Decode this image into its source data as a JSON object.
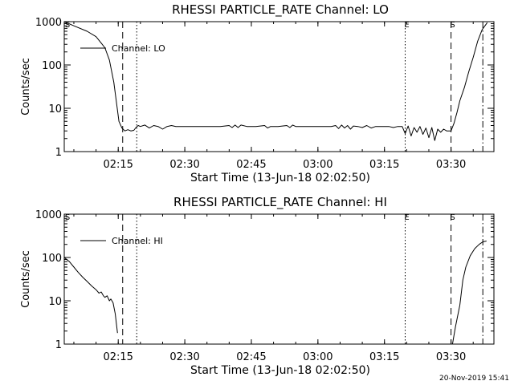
{
  "footer": {
    "timestamp": "20-Nov-2019 15:41"
  },
  "chart_data": [
    {
      "type": "line",
      "title": "RHESSI PARTICLE_RATE Channel: LO",
      "xlabel": "Start Time (13-Jun-18 02:02:50)",
      "ylabel": "Counts/sec",
      "y_scale": "log",
      "ylim": [
        1,
        1000
      ],
      "xlim": [
        "02:02:50",
        "03:39:40"
      ],
      "x_ticks": [
        "02:15",
        "02:30",
        "02:45",
        "03:00",
        "03:15",
        "03:30"
      ],
      "y_ticks": [
        "1",
        "10",
        "100",
        "1000"
      ],
      "legend": {
        "position": "top-left",
        "entries": [
          "Channel: LO"
        ]
      },
      "grid": false,
      "markers": [
        {
          "time": "02:16:00",
          "style": "dashed",
          "label": ""
        },
        {
          "time": "02:19:10",
          "style": "dotted",
          "label": ""
        },
        {
          "time": "03:19:40",
          "style": "dotted",
          "label": "E"
        },
        {
          "time": "03:30:00",
          "style": "dashed",
          "label": "S"
        },
        {
          "time": "03:37:10",
          "style": "dashdot",
          "label": ""
        }
      ],
      "corner_labels": [
        "S"
      ],
      "series": [
        {
          "name": "Channel: LO",
          "points": [
            [
              "02:02:50",
              1000
            ],
            [
              "02:05:00",
              800
            ],
            [
              "02:08:00",
              600
            ],
            [
              "02:10:00",
              450
            ],
            [
              "02:12:00",
              250
            ],
            [
              "02:13:00",
              130
            ],
            [
              "02:14:00",
              40
            ],
            [
              "02:14:40",
              12
            ],
            [
              "02:15:10",
              5
            ],
            [
              "02:15:50",
              3.5
            ],
            [
              "02:16:30",
              3.0
            ],
            [
              "02:17:10",
              3.2
            ],
            [
              "02:17:50",
              3.0
            ],
            [
              "02:18:30",
              3.1
            ],
            [
              "02:19:00",
              3.6
            ],
            [
              "02:19:30",
              4.0
            ],
            [
              "02:20:00",
              3.8
            ],
            [
              "02:21:00",
              4.1
            ],
            [
              "02:22:00",
              3.5
            ],
            [
              "02:23:00",
              4.0
            ],
            [
              "02:24:00",
              3.8
            ],
            [
              "02:25:00",
              3.3
            ],
            [
              "02:26:00",
              3.8
            ],
            [
              "02:27:00",
              4.0
            ],
            [
              "02:28:00",
              3.8
            ],
            [
              "02:29:00",
              3.8
            ],
            [
              "02:30:00",
              3.8
            ],
            [
              "02:32:00",
              3.8
            ],
            [
              "02:34:00",
              3.8
            ],
            [
              "02:36:00",
              3.8
            ],
            [
              "02:38:00",
              3.8
            ],
            [
              "02:40:00",
              4.0
            ],
            [
              "02:40:40",
              3.6
            ],
            [
              "02:41:20",
              4.1
            ],
            [
              "02:42:00",
              3.6
            ],
            [
              "02:42:40",
              4.1
            ],
            [
              "02:44:00",
              3.8
            ],
            [
              "02:46:00",
              3.8
            ],
            [
              "02:48:00",
              4.0
            ],
            [
              "02:48:40",
              3.5
            ],
            [
              "02:49:20",
              3.8
            ],
            [
              "02:51:00",
              3.8
            ],
            [
              "02:53:00",
              4.0
            ],
            [
              "02:53:40",
              3.6
            ],
            [
              "02:54:20",
              4.1
            ],
            [
              "02:55:00",
              3.8
            ],
            [
              "02:57:00",
              3.8
            ],
            [
              "02:59:00",
              3.8
            ],
            [
              "03:01:00",
              3.8
            ],
            [
              "03:03:00",
              3.8
            ],
            [
              "03:04:00",
              4.0
            ],
            [
              "03:04:40",
              3.4
            ],
            [
              "03:05:20",
              4.1
            ],
            [
              "03:06:00",
              3.5
            ],
            [
              "03:06:40",
              4.0
            ],
            [
              "03:07:20",
              3.3
            ],
            [
              "03:08:00",
              3.9
            ],
            [
              "03:09:00",
              3.8
            ],
            [
              "03:10:00",
              3.6
            ],
            [
              "03:11:00",
              4.0
            ],
            [
              "03:12:00",
              3.5
            ],
            [
              "03:13:00",
              3.8
            ],
            [
              "03:14:00",
              3.8
            ],
            [
              "03:15:00",
              3.8
            ],
            [
              "03:16:00",
              3.8
            ],
            [
              "03:17:00",
              3.6
            ],
            [
              "03:18:00",
              3.8
            ],
            [
              "03:19:00",
              3.8
            ],
            [
              "03:19:40",
              2.6
            ],
            [
              "03:20:20",
              3.9
            ],
            [
              "03:21:00",
              2.3
            ],
            [
              "03:21:40",
              3.6
            ],
            [
              "03:22:20",
              2.8
            ],
            [
              "03:23:00",
              3.8
            ],
            [
              "03:23:40",
              2.5
            ],
            [
              "03:24:20",
              3.5
            ],
            [
              "03:25:00",
              2.1
            ],
            [
              "03:25:40",
              3.6
            ],
            [
              "03:26:20",
              1.8
            ],
            [
              "03:27:00",
              3.3
            ],
            [
              "03:27:40",
              2.8
            ],
            [
              "03:28:20",
              3.3
            ],
            [
              "03:29:00",
              3.0
            ],
            [
              "03:30:00",
              3.0
            ],
            [
              "03:30:40",
              4.5
            ],
            [
              "03:31:20",
              8
            ],
            [
              "03:32:00",
              15
            ],
            [
              "03:33:00",
              30
            ],
            [
              "03:34:00",
              70
            ],
            [
              "03:35:00",
              150
            ],
            [
              "03:36:00",
              350
            ],
            [
              "03:37:00",
              650
            ],
            [
              "03:38:10",
              950
            ]
          ]
        }
      ]
    },
    {
      "type": "line",
      "title": "RHESSI PARTICLE_RATE Channel: HI",
      "xlabel": "Start Time (13-Jun-18 02:02:50)",
      "ylabel": "Counts/sec",
      "y_scale": "log",
      "ylim": [
        1,
        1000
      ],
      "xlim": [
        "02:02:50",
        "03:39:40"
      ],
      "x_ticks": [
        "02:15",
        "02:30",
        "02:45",
        "03:00",
        "03:15",
        "03:30"
      ],
      "y_ticks": [
        "1",
        "10",
        "100",
        "1000"
      ],
      "legend": {
        "position": "top-left",
        "entries": [
          "Channel: HI"
        ]
      },
      "grid": false,
      "markers": [
        {
          "time": "02:16:00",
          "style": "dashed",
          "label": ""
        },
        {
          "time": "02:19:10",
          "style": "dotted",
          "label": ""
        },
        {
          "time": "03:19:40",
          "style": "dotted",
          "label": "E"
        },
        {
          "time": "03:30:00",
          "style": "dashed",
          "label": "S"
        },
        {
          "time": "03:37:10",
          "style": "dashdot",
          "label": ""
        }
      ],
      "corner_labels": [
        "S"
      ],
      "series": [
        {
          "name": "Channel: HI",
          "segments": [
            [
              [
                "02:02:50",
                100
              ],
              [
                "02:04:00",
                80
              ],
              [
                "02:05:00",
                60
              ],
              [
                "02:06:00",
                45
              ],
              [
                "02:07:00",
                35
              ],
              [
                "02:08:00",
                28
              ],
              [
                "02:09:00",
                22
              ],
              [
                "02:10:00",
                18
              ],
              [
                "02:10:40",
                15
              ],
              [
                "02:11:10",
                16
              ],
              [
                "02:11:40",
                13
              ],
              [
                "02:12:00",
                12
              ],
              [
                "02:12:30",
                13
              ],
              [
                "02:13:00",
                10
              ],
              [
                "02:13:20",
                11
              ],
              [
                "02:13:50",
                9
              ],
              [
                "02:14:20",
                5
              ],
              [
                "02:14:50",
                1.8
              ]
            ],
            [
              [
                "03:30:20",
                1.0
              ],
              [
                "03:31:00",
                2.5
              ],
              [
                "03:32:00",
                8
              ],
              [
                "03:32:40",
                30
              ],
              [
                "03:33:20",
                60
              ],
              [
                "03:34:20",
                110
              ],
              [
                "03:35:20",
                160
              ],
              [
                "03:36:20",
                200
              ],
              [
                "03:37:10",
                230
              ],
              [
                "03:38:00",
                240
              ]
            ]
          ]
        }
      ]
    }
  ]
}
